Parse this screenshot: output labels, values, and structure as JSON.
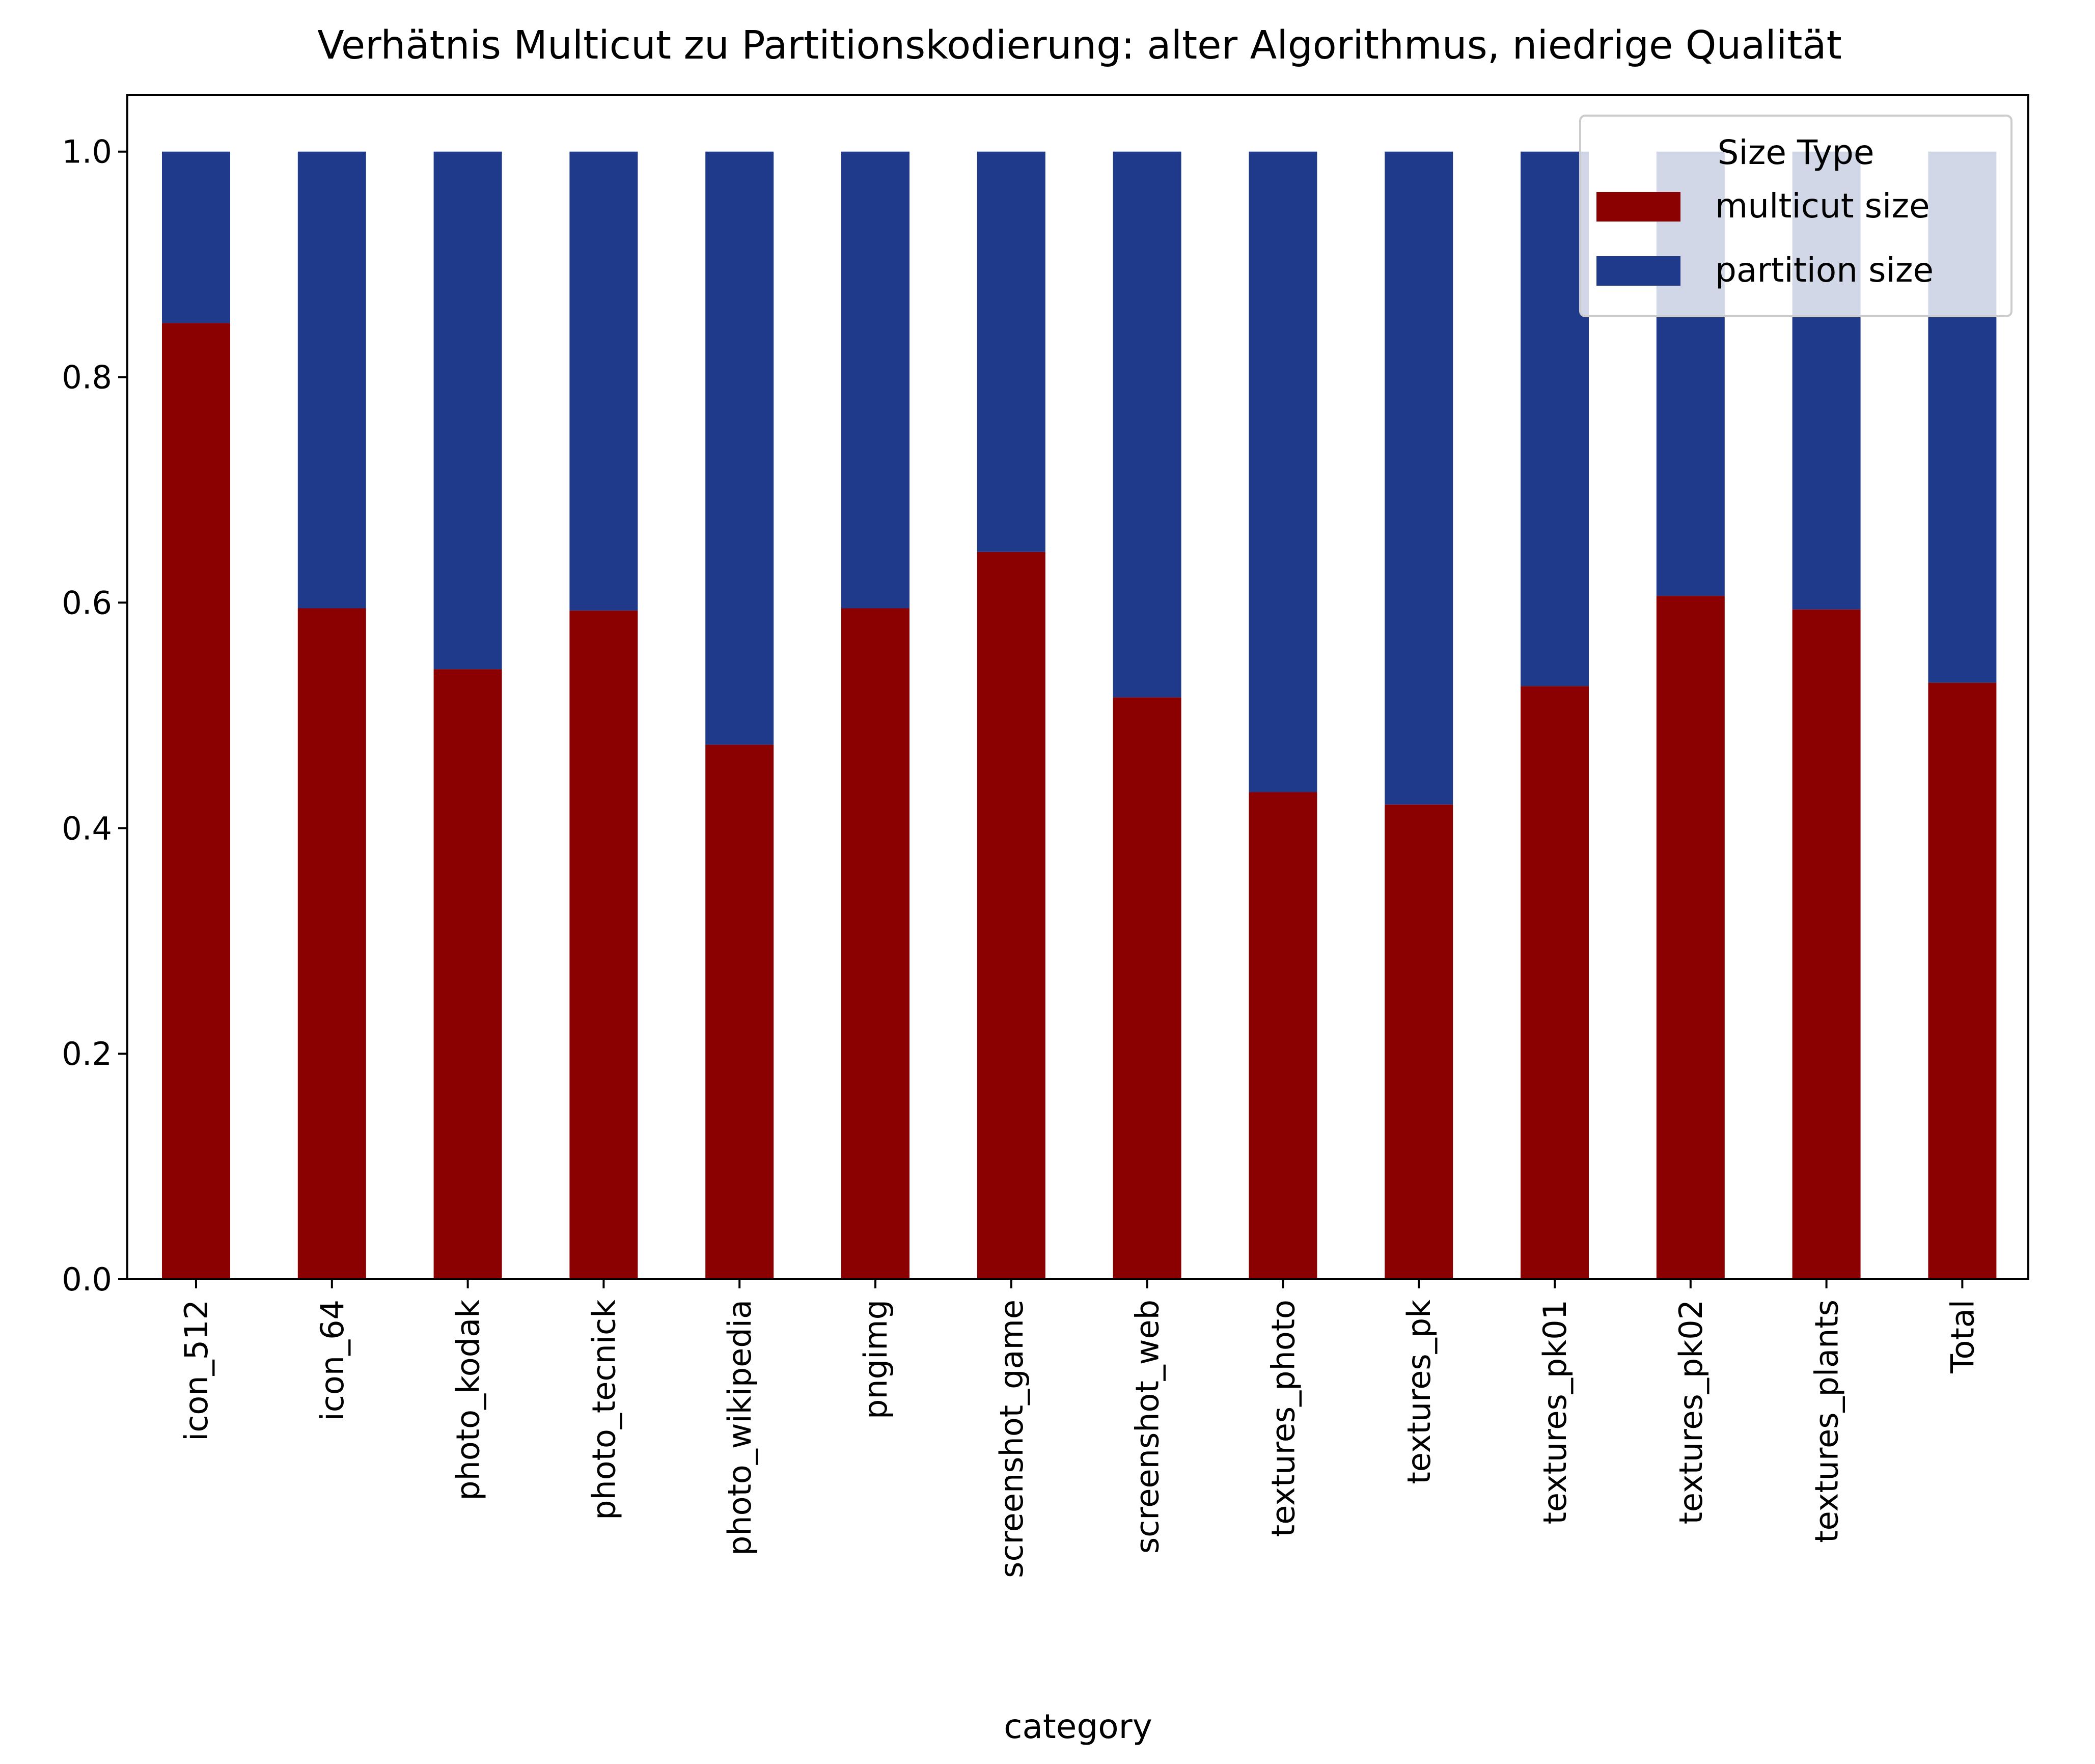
{
  "chart_data": {
    "type": "bar",
    "stacked": true,
    "title": "Verhätnis Multicut zu Partitionskodierung: alter Algorithmus, niedrige Qualität",
    "xlabel": "category",
    "ylabel": "",
    "ylim": [
      0,
      1.05
    ],
    "yticks": [
      "0.0",
      "0.2",
      "0.4",
      "0.6",
      "0.8",
      "1.0"
    ],
    "categories": [
      "icon_512",
      "icon_64",
      "photo_kodak",
      "photo_tecnick",
      "photo_wikipedia",
      "pngimg",
      "screenshot_game",
      "screenshot_web",
      "textures_photo",
      "textures_pk",
      "textures_pk01",
      "textures_pk02",
      "textures_plants",
      "Total"
    ],
    "series": [
      {
        "name": "multicut size",
        "color": "#8b0000",
        "values": [
          0.848,
          0.595,
          0.541,
          0.593,
          0.474,
          0.595,
          0.645,
          0.516,
          0.432,
          0.421,
          0.526,
          0.606,
          0.594,
          0.529
        ]
      },
      {
        "name": "partition size",
        "color": "#1f3a8a",
        "values": [
          0.152,
          0.405,
          0.459,
          0.407,
          0.526,
          0.405,
          0.355,
          0.484,
          0.568,
          0.579,
          0.474,
          0.394,
          0.406,
          0.471
        ]
      }
    ],
    "legend": {
      "title": "Size Type",
      "position": "top-right"
    },
    "grid": false
  }
}
